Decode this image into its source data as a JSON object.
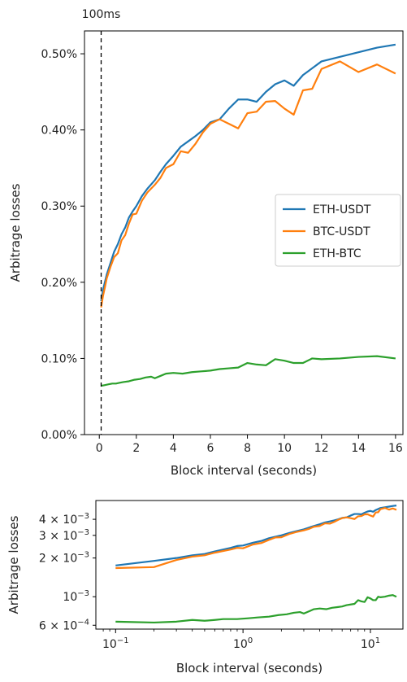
{
  "colors": {
    "eth_usdt": "#1f77b4",
    "btc_usdt": "#ff7f0e",
    "eth_btc": "#2ca02c"
  },
  "chart_data": [
    {
      "type": "line",
      "title": "",
      "xlabel": "Block interval (seconds)",
      "ylabel": "Arbitrage losses",
      "xlim": [
        -0.8,
        16.4
      ],
      "ylim": [
        0.0,
        0.53
      ],
      "xticks": [
        0,
        2,
        4,
        6,
        8,
        10,
        12,
        14,
        16
      ],
      "xtick_labels": [
        "0",
        "2",
        "4",
        "6",
        "8",
        "10",
        "12",
        "14",
        "16"
      ],
      "yticks": [
        0.0,
        0.1,
        0.2,
        0.3,
        0.4,
        0.5
      ],
      "ytick_labels": [
        "0.00%",
        "0.10%",
        "0.20%",
        "0.30%",
        "0.40%",
        "0.50%"
      ],
      "annotation": {
        "x": 0.1,
        "label": "100ms",
        "style": "dashed vertical line"
      },
      "legend": {
        "placement": "center-right",
        "entries": [
          "ETH-USDT",
          "BTC-USDT",
          "ETH-BTC"
        ]
      },
      "grid": false,
      "series": [
        {
          "name": "ETH-USDT",
          "x": [
            0.1,
            0.2,
            0.3,
            0.4,
            0.6,
            0.8,
            1.0,
            1.2,
            1.4,
            1.6,
            1.8,
            2.0,
            2.3,
            2.6,
            3.0,
            3.3,
            3.6,
            4.0,
            4.4,
            4.8,
            5.2,
            5.6,
            6.0,
            6.5,
            7.0,
            7.5,
            8.0,
            8.5,
            9.0,
            9.5,
            10.0,
            10.5,
            11.0,
            12.0,
            13.0,
            14.0,
            15.0,
            16.0
          ],
          "y": [
            0.175,
            0.19,
            0.2,
            0.21,
            0.225,
            0.24,
            0.25,
            0.263,
            0.272,
            0.285,
            0.293,
            0.3,
            0.313,
            0.323,
            0.334,
            0.345,
            0.355,
            0.366,
            0.378,
            0.385,
            0.392,
            0.4,
            0.41,
            0.414,
            0.428,
            0.44,
            0.44,
            0.437,
            0.45,
            0.46,
            0.465,
            0.458,
            0.472,
            0.49,
            0.496,
            0.502,
            0.508,
            0.512
          ]
        },
        {
          "name": "BTC-USDT",
          "x": [
            0.1,
            0.2,
            0.3,
            0.4,
            0.6,
            0.8,
            1.0,
            1.2,
            1.4,
            1.6,
            1.8,
            2.0,
            2.3,
            2.6,
            3.0,
            3.3,
            3.6,
            4.0,
            4.4,
            4.8,
            5.2,
            5.6,
            6.0,
            6.5,
            7.0,
            7.5,
            8.0,
            8.5,
            9.0,
            9.5,
            10.0,
            10.5,
            11.0,
            11.5,
            12.0,
            13.0,
            14.0,
            15.0,
            16.0
          ],
          "y": [
            0.167,
            0.182,
            0.193,
            0.205,
            0.22,
            0.233,
            0.238,
            0.255,
            0.262,
            0.277,
            0.289,
            0.29,
            0.307,
            0.318,
            0.328,
            0.337,
            0.35,
            0.355,
            0.372,
            0.37,
            0.382,
            0.397,
            0.408,
            0.414,
            0.408,
            0.402,
            0.422,
            0.424,
            0.437,
            0.438,
            0.428,
            0.42,
            0.452,
            0.454,
            0.48,
            0.49,
            0.476,
            0.486,
            0.474
          ]
        },
        {
          "name": "ETH-BTC",
          "x": [
            0.1,
            0.3,
            0.5,
            0.7,
            0.9,
            1.1,
            1.3,
            1.6,
            1.9,
            2.2,
            2.5,
            2.8,
            3.0,
            3.3,
            3.6,
            4.0,
            4.5,
            5.0,
            5.5,
            6.0,
            6.5,
            7.0,
            7.5,
            8.0,
            8.5,
            9.0,
            9.5,
            10.0,
            10.5,
            11.0,
            11.5,
            12.0,
            13.0,
            14.0,
            15.0,
            16.0
          ],
          "y": [
            0.064,
            0.065,
            0.066,
            0.067,
            0.067,
            0.068,
            0.069,
            0.07,
            0.072,
            0.073,
            0.075,
            0.076,
            0.074,
            0.077,
            0.08,
            0.081,
            0.08,
            0.082,
            0.083,
            0.084,
            0.086,
            0.087,
            0.088,
            0.094,
            0.092,
            0.091,
            0.099,
            0.097,
            0.094,
            0.094,
            0.1,
            0.099,
            0.1,
            0.102,
            0.103,
            0.1
          ]
        }
      ]
    },
    {
      "type": "line",
      "title": "",
      "xlabel": "Block interval (seconds)",
      "ylabel": "Arbitrage losses",
      "xscale": "log",
      "yscale": "log",
      "xlim": [
        0.07,
        18
      ],
      "ylim": [
        0.00056,
        0.0056
      ],
      "xticks": [
        0.1,
        1,
        10
      ],
      "xtick_labels": [
        "10",
        "10",
        "10"
      ],
      "xtick_exponents": [
        "−1",
        "0",
        "1"
      ],
      "yticks": [
        0.0006,
        0.001,
        0.002,
        0.003,
        0.004
      ],
      "ytick_mantissa": [
        "6 × 10",
        "10",
        "2 × 10",
        "3 × 10",
        "4 × 10"
      ],
      "ytick_exponents": [
        "−4",
        "−3",
        "−3",
        "−3",
        "−3"
      ],
      "grid": false,
      "series": [
        {
          "name": "ETH-USDT",
          "x": [
            0.1,
            0.2,
            0.3,
            0.4,
            0.5,
            0.6,
            0.8,
            0.9,
            1.0,
            1.2,
            1.4,
            1.6,
            1.8,
            2.0,
            2.3,
            2.6,
            3.0,
            3.3,
            3.6,
            4.0,
            4.4,
            4.8,
            5.2,
            5.6,
            6.0,
            6.5,
            7.0,
            7.5,
            8.0,
            8.5,
            9.0,
            9.5,
            10.0,
            10.5,
            11.0,
            12.0,
            13.0,
            14.0,
            15.0,
            16.0
          ],
          "y": [
            0.00175,
            0.0019,
            0.002,
            0.0021,
            0.00215,
            0.00225,
            0.0024,
            0.00248,
            0.0025,
            0.00263,
            0.00272,
            0.00285,
            0.00293,
            0.003,
            0.00313,
            0.00323,
            0.00334,
            0.00345,
            0.00355,
            0.00366,
            0.00378,
            0.00385,
            0.00392,
            0.004,
            0.0041,
            0.00414,
            0.00428,
            0.0044,
            0.0044,
            0.00437,
            0.0045,
            0.0046,
            0.00465,
            0.00458,
            0.00472,
            0.0049,
            0.00496,
            0.00502,
            0.00508,
            0.00512
          ]
        },
        {
          "name": "BTC-USDT",
          "x": [
            0.1,
            0.2,
            0.3,
            0.4,
            0.5,
            0.6,
            0.8,
            0.9,
            1.0,
            1.2,
            1.4,
            1.6,
            1.8,
            2.0,
            2.3,
            2.6,
            3.0,
            3.3,
            3.6,
            4.0,
            4.4,
            4.8,
            5.2,
            5.6,
            6.0,
            6.5,
            7.0,
            7.5,
            8.0,
            8.5,
            9.0,
            9.5,
            10.0,
            10.5,
            11.0,
            11.5,
            12.0,
            13.0,
            14.0,
            15.0,
            16.0
          ],
          "y": [
            0.00167,
            0.0017,
            0.00193,
            0.00205,
            0.0021,
            0.0022,
            0.00233,
            0.0024,
            0.00238,
            0.00255,
            0.00262,
            0.00277,
            0.00289,
            0.0029,
            0.00307,
            0.00318,
            0.00328,
            0.00337,
            0.0035,
            0.00355,
            0.00372,
            0.0037,
            0.00382,
            0.00397,
            0.00408,
            0.00414,
            0.00408,
            0.00402,
            0.00422,
            0.00424,
            0.00437,
            0.00438,
            0.00428,
            0.0042,
            0.00452,
            0.00454,
            0.0048,
            0.0049,
            0.00476,
            0.00486,
            0.00474
          ]
        },
        {
          "name": "ETH-BTC",
          "x": [
            0.1,
            0.2,
            0.3,
            0.4,
            0.5,
            0.6,
            0.7,
            0.9,
            1.1,
            1.3,
            1.6,
            1.9,
            2.2,
            2.5,
            2.8,
            3.0,
            3.3,
            3.6,
            4.0,
            4.5,
            5.0,
            5.5,
            6.0,
            6.5,
            7.0,
            7.5,
            8.0,
            8.5,
            9.0,
            9.5,
            10.0,
            10.5,
            11.0,
            11.5,
            12.0,
            13.0,
            14.0,
            15.0,
            16.0
          ],
          "y": [
            0.00064,
            0.00063,
            0.00064,
            0.00066,
            0.00065,
            0.00066,
            0.00067,
            0.00067,
            0.00068,
            0.00069,
            0.0007,
            0.00072,
            0.00073,
            0.00075,
            0.00076,
            0.00074,
            0.00077,
            0.0008,
            0.00081,
            0.0008,
            0.00082,
            0.00083,
            0.00084,
            0.00086,
            0.00087,
            0.00088,
            0.00094,
            0.00092,
            0.00091,
            0.00099,
            0.00097,
            0.00094,
            0.00094,
            0.001,
            0.00099,
            0.001,
            0.00102,
            0.00103,
            0.001
          ]
        }
      ]
    }
  ]
}
